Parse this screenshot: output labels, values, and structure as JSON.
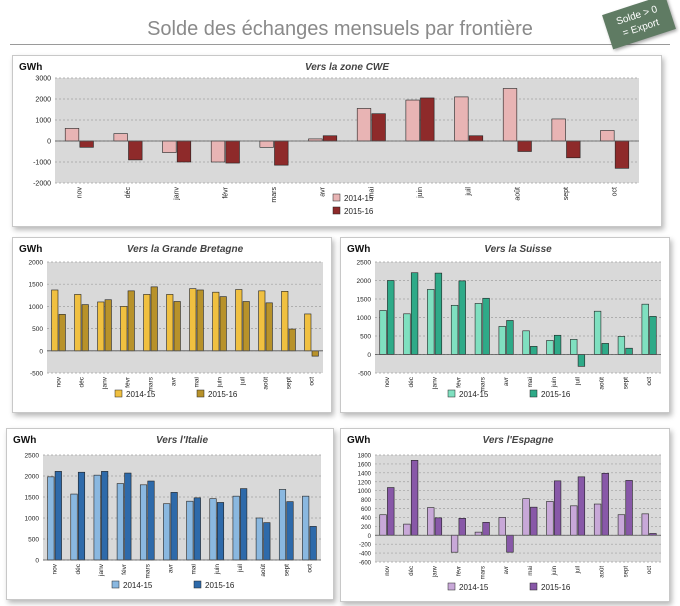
{
  "page": {
    "title": "Solde des échanges mensuels par frontière",
    "badge": [
      "Solde > 0",
      "= Export"
    ]
  },
  "colors": {
    "plot_bg": "#d9d9d9",
    "grid": "#a0a0a0"
  },
  "chart_data": [
    {
      "id": "cwe",
      "type": "bar",
      "title": "Vers la zone CWE",
      "ylabel": "GWh",
      "categories": [
        "nov",
        "déc",
        "janv",
        "févr",
        "mars",
        "avr",
        "mai",
        "juin",
        "juil",
        "août",
        "sept",
        "oct"
      ],
      "ylim": [
        -2000,
        3000
      ],
      "yticks": [
        -2000,
        -1000,
        0,
        1000,
        2000,
        3000
      ],
      "legend_position": "bottom-left-stacked",
      "series": [
        {
          "name": "2014-15",
          "color": "#e8b4b4",
          "values": [
            600,
            350,
            -550,
            -1000,
            -300,
            100,
            1550,
            1950,
            2100,
            2500,
            1050,
            500
          ]
        },
        {
          "name": "2015-16",
          "color": "#8e2a2a",
          "values": [
            -300,
            -900,
            -1000,
            -1050,
            -1150,
            250,
            1300,
            2050,
            250,
            -500,
            -800,
            -1300
          ]
        }
      ]
    },
    {
      "id": "gb",
      "type": "bar",
      "title": "Vers la Grande Bretagne",
      "ylabel": "GWh",
      "categories": [
        "nov",
        "déc",
        "janv",
        "févr",
        "mars",
        "avr",
        "mai",
        "juin",
        "juil",
        "août",
        "sept",
        "oct"
      ],
      "ylim": [
        -500,
        2000
      ],
      "yticks": [
        -500,
        0,
        500,
        1000,
        1500,
        2000
      ],
      "legend_position": "bottom",
      "series": [
        {
          "name": "2014-15",
          "color": "#f0c040",
          "values": [
            1370,
            1270,
            1100,
            1000,
            1270,
            1270,
            1400,
            1320,
            1380,
            1350,
            1340,
            830
          ]
        },
        {
          "name": "2015-16",
          "color": "#b8922a",
          "values": [
            820,
            1040,
            1150,
            1350,
            1440,
            1110,
            1370,
            1220,
            1110,
            1080,
            490,
            -120
          ]
        }
      ]
    },
    {
      "id": "ch",
      "type": "bar",
      "title": "Vers la Suisse",
      "ylabel": "GWh",
      "categories": [
        "nov",
        "déc",
        "janv",
        "févr",
        "mars",
        "avr",
        "mai",
        "juin",
        "juil",
        "août",
        "sept",
        "oct"
      ],
      "ylim": [
        -500,
        2500
      ],
      "yticks": [
        -500,
        0,
        500,
        1000,
        1500,
        2000,
        2500
      ],
      "legend_position": "bottom",
      "series": [
        {
          "name": "2014-15",
          "color": "#7fe0c0",
          "values": [
            1190,
            1100,
            1760,
            1330,
            1380,
            760,
            640,
            380,
            410,
            1170,
            490,
            1360
          ]
        },
        {
          "name": "2015-16",
          "color": "#2eaa88",
          "values": [
            2000,
            2210,
            2200,
            1990,
            1520,
            920,
            220,
            520,
            -320,
            300,
            170,
            1030
          ]
        }
      ]
    },
    {
      "id": "it",
      "type": "bar",
      "title": "Vers l'Italie",
      "ylabel": "GWh",
      "categories": [
        "nov",
        "déc",
        "janv",
        "févr",
        "mars",
        "avr",
        "mai",
        "juin",
        "juil",
        "août",
        "sept",
        "oct"
      ],
      "ylim": [
        0,
        2500
      ],
      "yticks": [
        0,
        500,
        1000,
        1500,
        2000,
        2500
      ],
      "legend_position": "bottom",
      "series": [
        {
          "name": "2014-15",
          "color": "#8ab8e0",
          "values": [
            1980,
            1570,
            2020,
            1820,
            1790,
            1340,
            1400,
            1460,
            1520,
            1000,
            1680,
            1520
          ]
        },
        {
          "name": "2015-16",
          "color": "#2e6aaa",
          "values": [
            2110,
            2090,
            2110,
            2070,
            1880,
            1610,
            1480,
            1370,
            1700,
            890,
            1390,
            800
          ]
        }
      ]
    },
    {
      "id": "es",
      "type": "bar",
      "title": "Vers l'Espagne",
      "ylabel": "GWh",
      "categories": [
        "nov",
        "déc",
        "janv",
        "févr",
        "mars",
        "avr",
        "mai",
        "juin",
        "juil",
        "août",
        "sept",
        "oct"
      ],
      "ylim": [
        -600,
        1800
      ],
      "yticks": [
        -600,
        -400,
        -200,
        0,
        200,
        400,
        600,
        800,
        1000,
        1200,
        1400,
        1600,
        1800
      ],
      "legend_position": "bottom",
      "series": [
        {
          "name": "2014-15",
          "color": "#c8a8d8",
          "values": [
            460,
            250,
            620,
            -380,
            70,
            400,
            820,
            760,
            660,
            700,
            460,
            480
          ]
        },
        {
          "name": "2015-16",
          "color": "#8858a8",
          "values": [
            1070,
            1680,
            390,
            380,
            290,
            -380,
            630,
            1220,
            1310,
            1390,
            1230,
            40
          ]
        }
      ]
    }
  ]
}
